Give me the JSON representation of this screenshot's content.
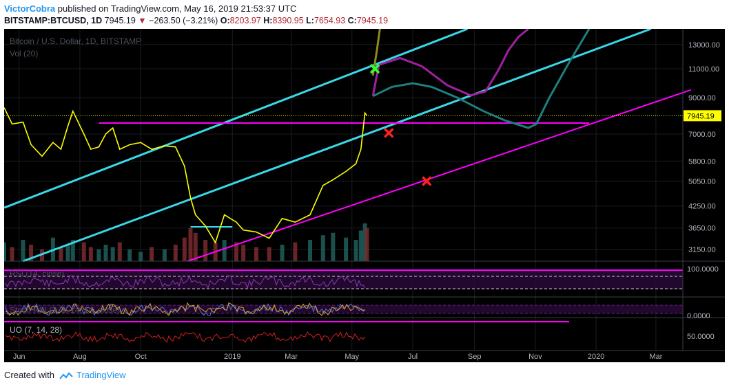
{
  "header": {
    "author": "VictorCobra",
    "published_text": "published on TradingView.com, May 16, 2019 21:53:37 UTC",
    "symbol": "BITSTAMP:BTCUSD, 1D",
    "last": "7945.19",
    "change": "−263.50 (−3.21%)",
    "o_label": "O:",
    "o_value": "8203.97",
    "h_label": "H:",
    "h_value": "8390.95",
    "l_label": "L:",
    "l_value": "7654.93",
    "c_label": "C:",
    "c_value": "7945.19"
  },
  "footer": {
    "created_with": "Created with",
    "brand": "TradingView"
  },
  "colors": {
    "background": "#000000",
    "price": "#ffff00",
    "channel": "#38d8e8",
    "magenta": "#ff00ff",
    "marker_green": "#33ff33",
    "marker_red": "#ff2020",
    "axis_text": "#b2b5be"
  },
  "chart_data": [
    {
      "type": "line",
      "title": "Bitcoin / U.S. Dollar, 1D, BITSTAMP",
      "volume_label": "Vol (20)",
      "y_scale": "log",
      "ylim": [
        2900,
        14500
      ],
      "y_ticks": [
        13000,
        11000,
        9000,
        7000,
        5800,
        5050,
        4250,
        3650,
        3150
      ],
      "y_tick_labels": [
        "13000.00",
        "11000.00",
        "9000.00",
        "7000.00",
        "5800.00",
        "5050.00",
        "4250.00",
        "3650.00",
        "3150.00"
      ],
      "x_ticks": [
        "Jun",
        "Aug",
        "Oct",
        "2019",
        "Mar",
        "May",
        "Jul",
        "Sep",
        "Nov",
        "2020",
        "Mar"
      ],
      "x_tick_dates": [
        "2018-06-01",
        "2018-08-01",
        "2018-10-01",
        "2019-01-01",
        "2019-03-01",
        "2019-05-01",
        "2019-07-01",
        "2019-09-01",
        "2019-11-01",
        "2020-01-01",
        "2020-03-01"
      ],
      "xlim": [
        "2018-05-17",
        "2020-03-28"
      ],
      "last_price": 7945.19,
      "last_price_label": "7945.19",
      "series": [
        {
          "kind": "price",
          "x": [
            "2018-05-17",
            "2018-05-25",
            "2018-06-05",
            "2018-06-13",
            "2018-06-24",
            "2018-07-05",
            "2018-07-13",
            "2018-07-20",
            "2018-07-25",
            "2018-08-05",
            "2018-08-12",
            "2018-08-20",
            "2018-08-27",
            "2018-09-03",
            "2018-09-10",
            "2018-09-20",
            "2018-10-01",
            "2018-10-12",
            "2018-10-25",
            "2018-11-05",
            "2018-11-14",
            "2018-11-20",
            "2018-11-25",
            "2018-12-05",
            "2018-12-15",
            "2018-12-24",
            "2019-01-05",
            "2019-01-12",
            "2019-01-25",
            "2019-02-07",
            "2019-02-20",
            "2019-03-05",
            "2019-03-20",
            "2019-04-02",
            "2019-04-12",
            "2019-04-25",
            "2019-05-05",
            "2019-05-10",
            "2019-05-14",
            "2019-05-16"
          ],
          "y": [
            8400,
            7500,
            7600,
            6500,
            6000,
            6600,
            6300,
            7400,
            8200,
            7000,
            6300,
            6400,
            7000,
            7300,
            6300,
            6500,
            6600,
            6300,
            6450,
            6400,
            5600,
            4500,
            4000,
            3700,
            3300,
            4000,
            3800,
            3600,
            3550,
            3400,
            3900,
            3800,
            4000,
            4900,
            5100,
            5400,
            5700,
            6300,
            8100,
            7945
          ]
        },
        {
          "kind": "volume",
          "values": [
            8,
            6,
            9,
            7,
            5,
            10,
            6,
            7,
            9,
            8,
            6,
            5,
            7,
            6,
            8,
            5,
            4,
            6,
            5,
            7,
            10,
            14,
            12,
            9,
            8,
            9,
            8,
            7,
            6,
            6,
            7,
            8,
            9,
            11,
            12,
            10,
            9,
            13,
            16,
            14
          ]
        }
      ],
      "annotations": {
        "channel_lines": [
          {
            "from": {
              "x": "2018-05-17",
              "y": 4200
            },
            "to": {
              "x": "2019-08-25",
              "y": 14500
            }
          },
          {
            "from": {
              "x": "2018-06-05",
              "y": 2900
            },
            "to": {
              "x": "2020-02-25",
              "y": 14500
            }
          }
        ],
        "support_line": {
          "from": {
            "x": "2018-11-17",
            "y": 2900
          },
          "to": {
            "x": "2020-04-05",
            "y": 9500
          }
        },
        "horizontal_level": {
          "from": {
            "x": "2018-08-20",
            "y": 7550
          },
          "to": {
            "x": "2019-12-25",
            "y": 7550
          }
        },
        "short_level": {
          "from": {
            "x": "2018-11-20",
            "y": 3680
          },
          "to": {
            "x": "2019-01-01",
            "y": 3680
          }
        },
        "projections": [
          {
            "color": "#8a8a20",
            "x": [
              "2019-05-22",
              "2019-05-26",
              "2019-05-29"
            ],
            "y": [
              10500,
              12500,
              14500
            ]
          },
          {
            "color": "#a020a0",
            "x": [
              "2019-05-22",
              "2019-05-28",
              "2019-06-18",
              "2019-07-10",
              "2019-08-05",
              "2019-08-28",
              "2019-09-12",
              "2019-09-25",
              "2019-10-05",
              "2019-10-15",
              "2019-10-25"
            ],
            "y": [
              9100,
              11300,
              11850,
              11200,
              9800,
              9150,
              9400,
              10900,
              12500,
              13700,
              14500
            ]
          },
          {
            "color": "#1f7f7f",
            "x": [
              "2019-05-22",
              "2019-06-10",
              "2019-07-01",
              "2019-07-20",
              "2019-08-15",
              "2019-09-10",
              "2019-10-01",
              "2019-10-25",
              "2019-11-02",
              "2019-11-15",
              "2019-12-05",
              "2019-12-25"
            ],
            "y": [
              9100,
              9700,
              9950,
              9700,
              9000,
              8200,
              7700,
              7300,
              7500,
              9000,
              11500,
              14500
            ]
          }
        ],
        "markers": [
          {
            "symbol": "X",
            "color": "#33ff33",
            "x": "2019-05-24",
            "y": 11000
          },
          {
            "symbol": "X",
            "color": "#ff2020",
            "x": "2019-06-07",
            "y": 7050
          },
          {
            "symbol": "X",
            "color": "#ff2020",
            "x": "2019-07-15",
            "y": 5050
          }
        ]
      }
    },
    {
      "type": "line",
      "title": "RSI (14, close)",
      "y_ticks": [
        100
      ],
      "y_tick_labels": [
        "100.0000"
      ]
    },
    {
      "type": "line",
      "title": "Stoch RSI (3, 3, 14, 14, close)",
      "y_ticks": [
        0
      ],
      "y_tick_labels": [
        "0.0000"
      ]
    },
    {
      "type": "line",
      "title": "UO (7, 14, 28)",
      "y_ticks": [
        50
      ],
      "y_tick_labels": [
        "50.0000"
      ]
    }
  ]
}
